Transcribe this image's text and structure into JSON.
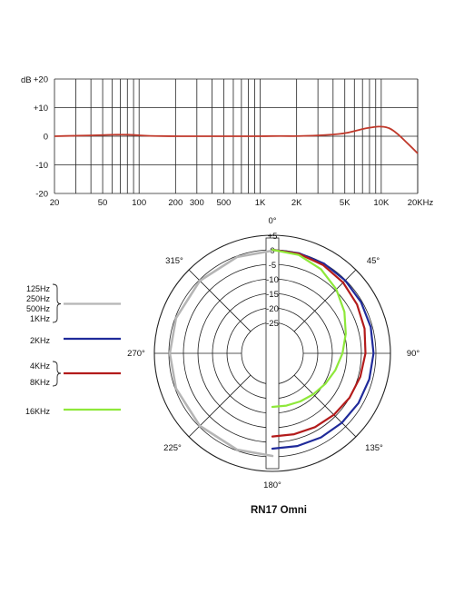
{
  "chart_data": [
    {
      "type": "line",
      "title": "",
      "xscale": "log",
      "xlim": [
        20,
        20000
      ],
      "ylim": [
        -20,
        20
      ],
      "ylabel": "dB",
      "x_ticks": [
        {
          "value": 20,
          "label": "20"
        },
        {
          "value": 50,
          "label": "50"
        },
        {
          "value": 100,
          "label": "100"
        },
        {
          "value": 200,
          "label": "200"
        },
        {
          "value": 300,
          "label": "300"
        },
        {
          "value": 500,
          "label": "500"
        },
        {
          "value": 1000,
          "label": "1K"
        },
        {
          "value": 2000,
          "label": "2K"
        },
        {
          "value": 5000,
          "label": "5K"
        },
        {
          "value": 10000,
          "label": "10K"
        },
        {
          "value": 20000,
          "label": "20KHz"
        }
      ],
      "y_ticks": [
        {
          "value": 20,
          "label": "+20"
        },
        {
          "value": 10,
          "label": "+10"
        },
        {
          "value": 0,
          "label": "0"
        },
        {
          "value": -10,
          "label": "-10"
        },
        {
          "value": -20,
          "label": "-20"
        }
      ],
      "grid": true,
      "series": [
        {
          "color": "#c0392b",
          "x": [
            20,
            30,
            50,
            70,
            90,
            120,
            200,
            300,
            500,
            1000,
            1500,
            2000,
            3000,
            4000,
            5000,
            6000,
            7000,
            8000,
            9000,
            10000,
            11000,
            12000,
            14000,
            16000,
            18000,
            20000
          ],
          "y": [
            0,
            0.2,
            0.4,
            0.6,
            0.5,
            0.1,
            0,
            0,
            0,
            0,
            0.1,
            0,
            0.3,
            0.6,
            1.0,
            1.8,
            2.5,
            3.0,
            3.3,
            3.4,
            3.2,
            2.6,
            0.5,
            -2.0,
            -4.0,
            -6.0
          ]
        }
      ]
    },
    {
      "type": "polar",
      "title": "RN17 Omni",
      "r_ticks": [
        {
          "value": 5,
          "label": "+5"
        },
        {
          "value": 0,
          "label": "0"
        },
        {
          "value": -5,
          "label": "-5"
        },
        {
          "value": -10,
          "label": "-10"
        },
        {
          "value": -15,
          "label": "-15"
        },
        {
          "value": -20,
          "label": "-20"
        },
        {
          "value": -25,
          "label": "-25"
        }
      ],
      "angle_labels": [
        {
          "angle": 0,
          "label": "0°"
        },
        {
          "angle": 45,
          "label": "45°"
        },
        {
          "angle": 90,
          "label": "90°"
        },
        {
          "angle": 135,
          "label": "135°"
        },
        {
          "angle": 180,
          "label": "180°"
        },
        {
          "angle": 225,
          "label": "225°"
        },
        {
          "angle": 270,
          "label": "270°"
        },
        {
          "angle": 315,
          "label": "315°"
        }
      ],
      "legend": [
        {
          "labels": [
            "125Hz",
            "250Hz",
            "500Hz",
            "1KHz"
          ],
          "color": "#b5b5b5"
        },
        {
          "labels": [
            "2KHz"
          ],
          "color": "#1f2a9a"
        },
        {
          "labels": [
            "4KHz",
            "8KHz"
          ],
          "color": "#b31b1b"
        },
        {
          "labels": [
            "16KHz"
          ],
          "color": "#8ee83a"
        }
      ],
      "series": [
        {
          "color": "#b5b5b5",
          "angles": [
            180,
            200,
            225,
            250,
            270,
            290,
            315,
            340,
            360
          ],
          "r": [
            -0.3,
            -0.3,
            -0.3,
            -0.3,
            -0.3,
            -0.3,
            -0.3,
            -0.3,
            -0.3
          ]
        },
        {
          "color": "#1f2a9a",
          "angles": [
            0,
            15,
            30,
            45,
            60,
            75,
            90,
            105,
            120,
            135,
            150,
            165,
            180
          ],
          "r": [
            0,
            0,
            0,
            -0.2,
            -0.4,
            -0.6,
            -0.8,
            -1.1,
            -1.4,
            -1.8,
            -2.2,
            -2.6,
            -2.8
          ]
        },
        {
          "color": "#b31b1b",
          "angles": [
            0,
            15,
            30,
            45,
            60,
            75,
            90,
            105,
            120,
            135,
            150,
            165,
            180
          ],
          "r": [
            0,
            -0.2,
            -0.6,
            -1.2,
            -2.0,
            -2.8,
            -3.6,
            -4.3,
            -5.0,
            -5.7,
            -6.3,
            -6.8,
            -7.0
          ]
        },
        {
          "color": "#8ee83a",
          "angles": [
            0,
            15,
            30,
            45,
            60,
            75,
            90,
            105,
            120,
            135,
            150,
            165,
            180
          ],
          "r": [
            0,
            -0.6,
            -2.2,
            -4.5,
            -7.0,
            -9.5,
            -11.5,
            -13.2,
            -14.6,
            -15.7,
            -16.5,
            -17.0,
            -17.2
          ]
        }
      ]
    }
  ]
}
